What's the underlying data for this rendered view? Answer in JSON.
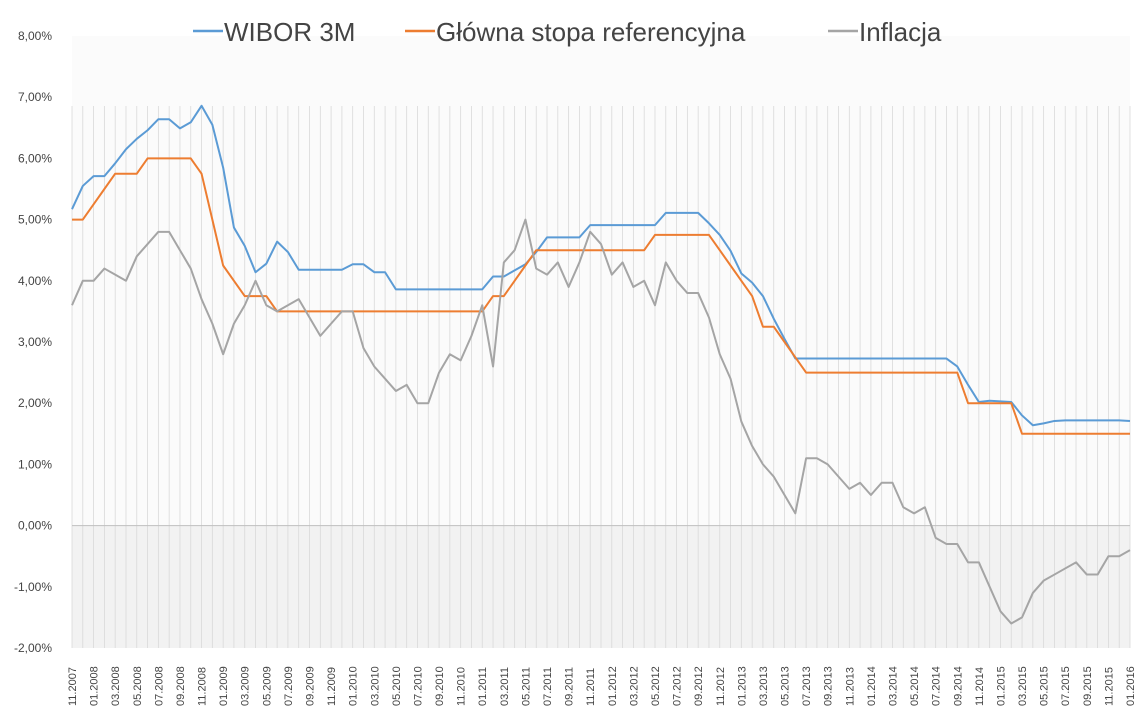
{
  "chart_data": {
    "type": "line",
    "title": "",
    "xlabel": "",
    "ylabel": "",
    "ylim": [
      -2,
      8
    ],
    "y_ticks": [
      "8,00%",
      "7,00%",
      "6,00%",
      "5,00%",
      "4,00%",
      "3,00%",
      "2,00%",
      "1,00%",
      "0,00%",
      "-1,00%",
      "-2,00%"
    ],
    "legend_position": "top",
    "grid": "vertical monthly lines with light shaded background",
    "x": [
      "11.2007",
      "12.2007",
      "01.2008",
      "02.2008",
      "03.2008",
      "04.2008",
      "05.2008",
      "06.2008",
      "07.2008",
      "08.2008",
      "09.2008",
      "10.2008",
      "11.2008",
      "12.2008",
      "01.2009",
      "02.2009",
      "03.2009",
      "04.2009",
      "05.2009",
      "06.2009",
      "07.2009",
      "08.2009",
      "09.2009",
      "10.2009",
      "11.2009",
      "12.2009",
      "01.2010",
      "02.2010",
      "03.2010",
      "04.2010",
      "05.2010",
      "06.2010",
      "07.2010",
      "08.2010",
      "09.2010",
      "10.2010",
      "11.2010",
      "12.2010",
      "01.2011",
      "02.2011",
      "03.2011",
      "04.2011",
      "05.2011",
      "06.2011",
      "07.2011",
      "08.2011",
      "09.2011",
      "10.2011",
      "11.2011",
      "12.2011",
      "01.2012",
      "02.2012",
      "03.2012",
      "04.2012",
      "05.2012",
      "06.2012",
      "07.2012",
      "08.2012",
      "09.2012",
      "10.2012",
      "11.2012",
      "12.2012",
      "01.2013",
      "02.2013",
      "03.2013",
      "04.2013",
      "05.2013",
      "06.2013",
      "07.2013",
      "08.2013",
      "09.2013",
      "10.2013",
      "11.2013",
      "12.2013",
      "01.2014",
      "02.2014",
      "03.2014",
      "04.2014",
      "05.2014",
      "06.2014",
      "07.2014",
      "08.2014",
      "09.2014",
      "10.2014",
      "11.2014",
      "12.2014",
      "01.2015",
      "02.2015",
      "03.2015",
      "04.2015",
      "05.2015",
      "06.2015",
      "07.2015",
      "08.2015",
      "09.2015",
      "10.2015",
      "11.2015",
      "12.2015",
      "01.2016"
    ],
    "x_tick_labels": [
      "11.2007",
      "01.2008",
      "03.2008",
      "05.2008",
      "07.2008",
      "09.2008",
      "11.2008",
      "01.2009",
      "03.2009",
      "05.2009",
      "07.2009",
      "09.2009",
      "11.2009",
      "01.2010",
      "03.2010",
      "05.2010",
      "07.2010",
      "09.2010",
      "11.2010",
      "01.2011",
      "03.2011",
      "05.2011",
      "07.2011",
      "09.2011",
      "11.2011",
      "01.2012",
      "03.2012",
      "05.2012",
      "07.2012",
      "09.2012",
      "11.2012",
      "01.2013",
      "03.2013",
      "05.2013",
      "07.2013",
      "09.2013",
      "11.2013",
      "01.2014",
      "03.2014",
      "05.2014",
      "07.2014",
      "09.2014",
      "11.2014",
      "01.2015",
      "03.2015",
      "05.2015",
      "07.2015",
      "09.2015",
      "11.2015",
      "01.2016"
    ],
    "series": [
      {
        "name": "WIBOR 3M",
        "color": "#5b9bd5",
        "values": [
          5.17,
          5.55,
          5.71,
          5.71,
          5.92,
          6.15,
          6.32,
          6.46,
          6.64,
          6.64,
          6.49,
          6.59,
          6.86,
          6.55,
          5.85,
          4.87,
          4.57,
          4.14,
          4.28,
          4.64,
          4.47,
          4.18,
          4.18,
          4.18,
          4.18,
          4.18,
          4.27,
          4.27,
          4.14,
          4.14,
          3.86,
          3.86,
          3.86,
          3.86,
          3.86,
          3.86,
          3.86,
          3.86,
          3.86,
          4.07,
          4.07,
          4.17,
          4.27,
          4.47,
          4.71,
          4.71,
          4.71,
          4.71,
          4.91,
          4.91,
          4.91,
          4.91,
          4.91,
          4.91,
          4.91,
          5.11,
          5.11,
          5.11,
          5.11,
          4.94,
          4.75,
          4.49,
          4.12,
          3.97,
          3.75,
          3.38,
          3.05,
          2.73,
          2.73,
          2.73,
          2.73,
          2.73,
          2.73,
          2.73,
          2.73,
          2.73,
          2.73,
          2.73,
          2.73,
          2.73,
          2.73,
          2.73,
          2.6,
          2.3,
          2.02,
          2.04,
          2.03,
          2.02,
          1.8,
          1.64,
          1.67,
          1.71,
          1.72,
          1.72,
          1.72,
          1.72,
          1.72,
          1.72,
          1.71
        ]
      },
      {
        "name": "Główna stopa referencyjna",
        "color": "#ed7d31",
        "values": [
          5.0,
          5.0,
          5.25,
          5.5,
          5.75,
          5.75,
          5.75,
          6.0,
          6.0,
          6.0,
          6.0,
          6.0,
          5.75,
          5.0,
          4.25,
          4.0,
          3.75,
          3.75,
          3.75,
          3.5,
          3.5,
          3.5,
          3.5,
          3.5,
          3.5,
          3.5,
          3.5,
          3.5,
          3.5,
          3.5,
          3.5,
          3.5,
          3.5,
          3.5,
          3.5,
          3.5,
          3.5,
          3.5,
          3.5,
          3.75,
          3.75,
          4.0,
          4.25,
          4.5,
          4.5,
          4.5,
          4.5,
          4.5,
          4.5,
          4.5,
          4.5,
          4.5,
          4.5,
          4.5,
          4.75,
          4.75,
          4.75,
          4.75,
          4.75,
          4.75,
          4.5,
          4.25,
          4.0,
          3.75,
          3.25,
          3.25,
          3.0,
          2.75,
          2.5,
          2.5,
          2.5,
          2.5,
          2.5,
          2.5,
          2.5,
          2.5,
          2.5,
          2.5,
          2.5,
          2.5,
          2.5,
          2.5,
          2.5,
          2.0,
          2.0,
          2.0,
          2.0,
          2.0,
          1.5,
          1.5,
          1.5,
          1.5,
          1.5,
          1.5,
          1.5,
          1.5,
          1.5,
          1.5,
          1.5
        ]
      },
      {
        "name": "Inflacja",
        "color": "#a5a5a5",
        "values": [
          3.6,
          4.0,
          4.0,
          4.2,
          4.1,
          4.0,
          4.4,
          4.6,
          4.8,
          4.8,
          4.5,
          4.2,
          3.7,
          3.3,
          2.8,
          3.3,
          3.6,
          4.0,
          3.6,
          3.5,
          3.6,
          3.7,
          3.4,
          3.1,
          3.3,
          3.5,
          3.5,
          2.9,
          2.6,
          2.4,
          2.2,
          2.3,
          2.0,
          2.0,
          2.5,
          2.8,
          2.7,
          3.1,
          3.6,
          2.6,
          4.3,
          4.5,
          5.0,
          4.2,
          4.1,
          4.3,
          3.9,
          4.3,
          4.8,
          4.6,
          4.1,
          4.3,
          3.9,
          4.0,
          3.6,
          4.3,
          4.0,
          3.8,
          3.8,
          3.4,
          2.8,
          2.4,
          1.7,
          1.3,
          1.0,
          0.8,
          0.5,
          0.2,
          1.1,
          1.1,
          1.0,
          0.8,
          0.6,
          0.7,
          0.5,
          0.7,
          0.7,
          0.3,
          0.2,
          0.3,
          -0.2,
          -0.3,
          -0.3,
          -0.6,
          -0.6,
          -1.0,
          -1.4,
          -1.6,
          -1.5,
          -1.1,
          -0.9,
          -0.8,
          -0.7,
          -0.6,
          -0.8,
          -0.8,
          -0.5,
          -0.5,
          -0.4
        ]
      }
    ]
  }
}
